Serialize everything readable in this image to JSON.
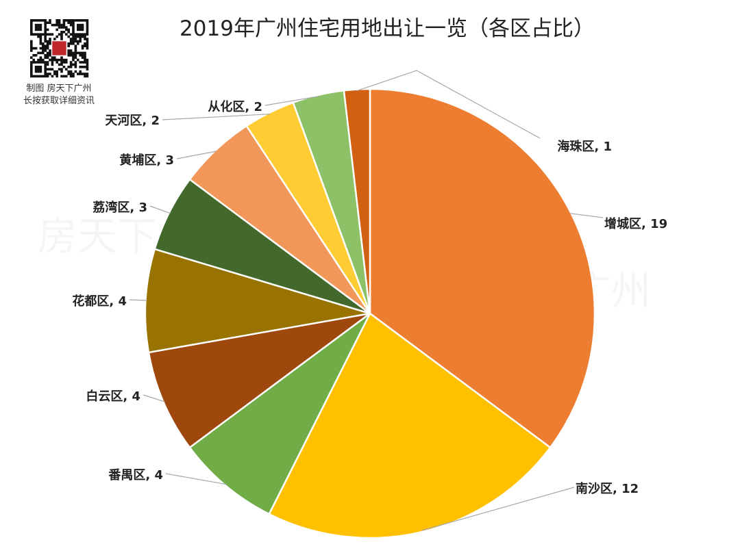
{
  "branding": {
    "caption_line1": "制图 房天下广州",
    "caption_line2": "长按获取详细资讯",
    "watermark": "房天下广州",
    "qr_badge_color": "#c0262c"
  },
  "chart_data": {
    "type": "pie",
    "title": "2019年广州住宅用地出让一览（各区占比）",
    "label_separator": ", ",
    "categories": [
      "增城区",
      "南沙区",
      "番禺区",
      "白云区",
      "花都区",
      "荔湾区",
      "黄埔区",
      "天河区",
      "从化区",
      "海珠区"
    ],
    "values": [
      19,
      12,
      4,
      4,
      4,
      3,
      3,
      2,
      2,
      1
    ],
    "colors": [
      "#ED7D31",
      "#FFC000",
      "#70AD47",
      "#9E480E",
      "#997300",
      "#43682B",
      "#F1975A",
      "#FFCD33",
      "#8CC168",
      "#D26012"
    ],
    "start_angle_deg": 0,
    "direction": "clockwise",
    "legend": "none",
    "data_labels": "outside-with-leader-lines"
  }
}
